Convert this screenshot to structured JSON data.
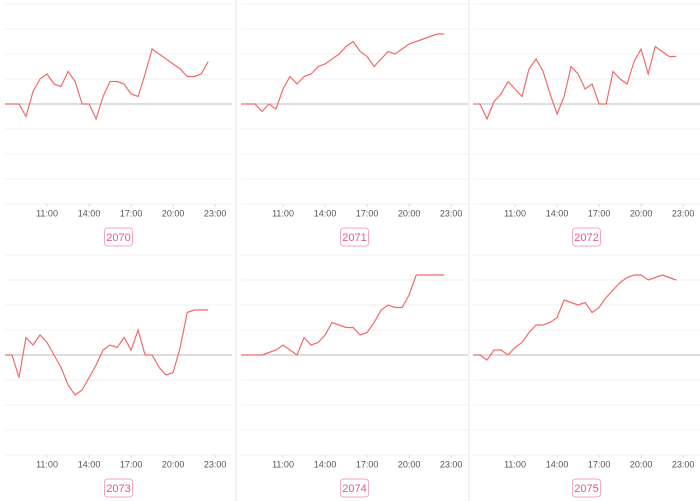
{
  "chart_data": [
    {
      "type": "line",
      "label": "2070",
      "color": "#f26b6b",
      "grid": true,
      "x": [
        8,
        8.5,
        9,
        9.5,
        10,
        10.5,
        11,
        11.5,
        12,
        12.5,
        13,
        13.5,
        14,
        14.5,
        15,
        15.5,
        16,
        16.5,
        17,
        17.5,
        18,
        18.5,
        19,
        19.5,
        20,
        20.5,
        21,
        21.5,
        22,
        22.5
      ],
      "values": [
        0,
        0,
        0,
        -0.5,
        0.5,
        1,
        1.2,
        0.8,
        0.7,
        1.3,
        0.9,
        0,
        0,
        -0.6,
        0.3,
        0.9,
        0.9,
        0.8,
        0.4,
        0.3,
        1.2,
        2.2,
        2,
        1.8,
        1.6,
        1.4,
        1.1,
        1.1,
        1.2,
        1.7
      ],
      "xlim": [
        8,
        24.2
      ],
      "xticks": [
        {
          "value": 11,
          "label": "11:00"
        },
        {
          "value": 14,
          "label": "14:00"
        },
        {
          "value": 17,
          "label": "17:00"
        },
        {
          "value": 20,
          "label": "20:00"
        },
        {
          "value": 23,
          "label": "23:00"
        }
      ],
      "ylim": [
        -4,
        4
      ],
      "yticks": [
        -4,
        -3,
        -2,
        -1,
        0,
        1,
        2,
        3,
        4
      ]
    },
    {
      "type": "line",
      "label": "2071",
      "color": "#f26b6b",
      "grid": true,
      "x": [
        8,
        8.5,
        9,
        9.5,
        10,
        10.5,
        11,
        11.5,
        12,
        12.5,
        13,
        13.5,
        14,
        14.5,
        15,
        15.5,
        16,
        16.5,
        17,
        17.5,
        18,
        18.5,
        19,
        19.5,
        20,
        20.5,
        21,
        21.5,
        22,
        22.5
      ],
      "values": [
        0,
        0,
        0,
        -0.3,
        0,
        -0.2,
        0.6,
        1.1,
        0.8,
        1.1,
        1.2,
        1.5,
        1.6,
        1.8,
        2,
        2.3,
        2.5,
        2.1,
        1.9,
        1.5,
        1.8,
        2.1,
        2,
        2.2,
        2.4,
        2.5,
        2.6,
        2.7,
        2.8,
        2.8
      ],
      "xlim": [
        8,
        24.2
      ],
      "xticks": [
        {
          "value": 11,
          "label": "11:00"
        },
        {
          "value": 14,
          "label": "14:00"
        },
        {
          "value": 17,
          "label": "17:00"
        },
        {
          "value": 20,
          "label": "20:00"
        },
        {
          "value": 23,
          "label": "23:00"
        }
      ],
      "ylim": [
        -4,
        4
      ],
      "yticks": [
        -4,
        -3,
        -2,
        -1,
        0,
        1,
        2,
        3,
        4
      ]
    },
    {
      "type": "line",
      "label": "2072",
      "color": "#f26b6b",
      "grid": true,
      "x": [
        8,
        8.5,
        9,
        9.5,
        10,
        10.5,
        11,
        11.5,
        12,
        12.5,
        13,
        13.5,
        14,
        14.5,
        15,
        15.5,
        16,
        16.5,
        17,
        17.5,
        18,
        18.5,
        19,
        19.5,
        20,
        20.5,
        21,
        21.5,
        22,
        22.5
      ],
      "values": [
        0,
        0,
        -0.6,
        0.1,
        0.4,
        0.9,
        0.6,
        0.3,
        1.4,
        1.8,
        1.3,
        0.4,
        -0.4,
        0.3,
        1.5,
        1.2,
        0.6,
        0.8,
        0,
        0,
        1.3,
        1,
        0.8,
        1.7,
        2.2,
        1.2,
        2.3,
        2.1,
        1.9,
        1.9
      ],
      "xlim": [
        8,
        24.2
      ],
      "xticks": [
        {
          "value": 11,
          "label": "11:00"
        },
        {
          "value": 14,
          "label": "14:00"
        },
        {
          "value": 17,
          "label": "17:00"
        },
        {
          "value": 20,
          "label": "20:00"
        },
        {
          "value": 23,
          "label": "23:00"
        }
      ],
      "ylim": [
        -4,
        4
      ],
      "yticks": [
        -4,
        -3,
        -2,
        -1,
        0,
        1,
        2,
        3,
        4
      ]
    },
    {
      "type": "line",
      "label": "2073",
      "color": "#f26b6b",
      "grid": true,
      "x": [
        8,
        8.5,
        9,
        9.5,
        10,
        10.5,
        11,
        11.5,
        12,
        12.5,
        13,
        13.5,
        14,
        14.5,
        15,
        15.5,
        16,
        16.5,
        17,
        17.5,
        18,
        18.5,
        19,
        19.5,
        20,
        20.5,
        21,
        21.5,
        22,
        22.5
      ],
      "values": [
        0,
        0,
        -0.9,
        0.7,
        0.4,
        0.8,
        0.5,
        0,
        -0.5,
        -1.2,
        -1.6,
        -1.4,
        -0.9,
        -0.4,
        0.2,
        0.4,
        0.3,
        0.7,
        0.2,
        1,
        0,
        0,
        -0.5,
        -0.8,
        -0.7,
        0.3,
        1.7,
        1.8,
        1.8,
        1.8
      ],
      "xlim": [
        8,
        24.2
      ],
      "xticks": [
        {
          "value": 11,
          "label": "11:00"
        },
        {
          "value": 14,
          "label": "14:00"
        },
        {
          "value": 17,
          "label": "17:00"
        },
        {
          "value": 20,
          "label": "20:00"
        },
        {
          "value": 23,
          "label": "23:00"
        }
      ],
      "ylim": [
        -4,
        4
      ],
      "yticks": [
        -4,
        -3,
        -2,
        -1,
        0,
        1,
        2,
        3,
        4
      ]
    },
    {
      "type": "line",
      "label": "2074",
      "color": "#f26b6b",
      "grid": true,
      "x": [
        8,
        8.5,
        9,
        9.5,
        10,
        10.5,
        11,
        11.5,
        12,
        12.5,
        13,
        13.5,
        14,
        14.5,
        15,
        15.5,
        16,
        16.5,
        17,
        17.5,
        18,
        18.5,
        19,
        19.5,
        20,
        20.5,
        21,
        21.5,
        22,
        22.5
      ],
      "values": [
        0,
        0,
        0,
        0,
        0.1,
        0.2,
        0.4,
        0.2,
        0,
        0.7,
        0.4,
        0.5,
        0.8,
        1.3,
        1.2,
        1.1,
        1.1,
        0.8,
        0.9,
        1.3,
        1.8,
        2,
        1.9,
        1.9,
        2.4,
        3.2,
        3.2,
        3.2,
        3.2,
        3.2
      ],
      "xlim": [
        8,
        24.2
      ],
      "xticks": [
        {
          "value": 11,
          "label": "11:00"
        },
        {
          "value": 14,
          "label": "14:00"
        },
        {
          "value": 17,
          "label": "17:00"
        },
        {
          "value": 20,
          "label": "20:00"
        },
        {
          "value": 23,
          "label": "23:00"
        }
      ],
      "ylim": [
        -4,
        4
      ],
      "yticks": [
        -4,
        -3,
        -2,
        -1,
        0,
        1,
        2,
        3,
        4
      ]
    },
    {
      "type": "line",
      "label": "2075",
      "color": "#f26b6b",
      "grid": true,
      "x": [
        8,
        8.5,
        9,
        9.5,
        10,
        10.5,
        11,
        11.5,
        12,
        12.5,
        13,
        13.5,
        14,
        14.5,
        15,
        15.5,
        16,
        16.5,
        17,
        17.5,
        18,
        18.5,
        19,
        19.5,
        20,
        20.5,
        21,
        21.5,
        22,
        22.5
      ],
      "values": [
        0,
        0,
        -0.2,
        0.2,
        0.2,
        0,
        0.3,
        0.5,
        0.9,
        1.2,
        1.2,
        1.3,
        1.5,
        2.2,
        2.1,
        2,
        2.1,
        1.7,
        1.9,
        2.3,
        2.6,
        2.9,
        3.1,
        3.2,
        3.2,
        3,
        3.1,
        3.2,
        3.1,
        3
      ],
      "xlim": [
        8,
        24.2
      ],
      "xticks": [
        {
          "value": 11,
          "label": "11:00"
        },
        {
          "value": 14,
          "label": "14:00"
        },
        {
          "value": 17,
          "label": "17:00"
        },
        {
          "value": 20,
          "label": "20:00"
        },
        {
          "value": 23,
          "label": "23:00"
        }
      ],
      "ylim": [
        -4,
        4
      ],
      "yticks": [
        -4,
        -3,
        -2,
        -1,
        0,
        1,
        2,
        3,
        4
      ]
    }
  ]
}
